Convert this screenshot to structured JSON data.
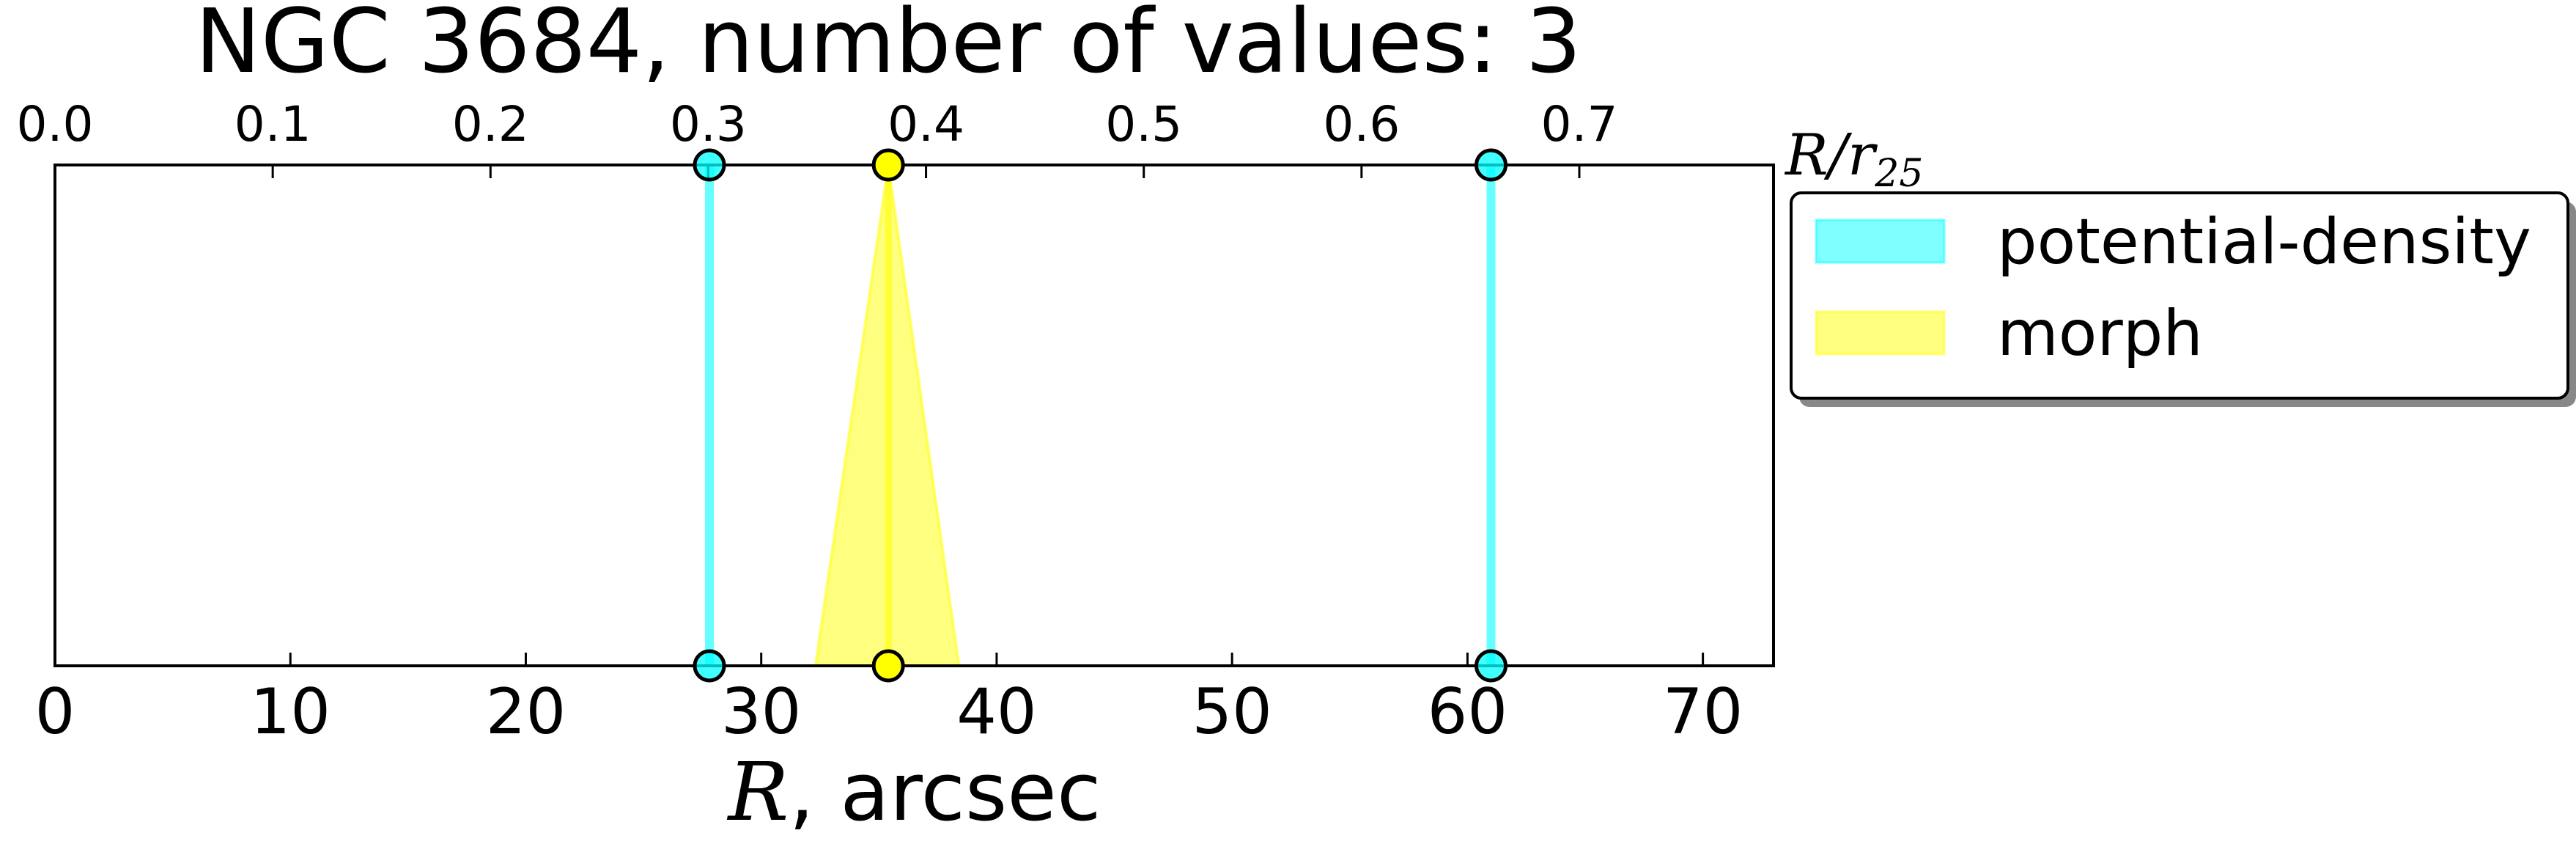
{
  "chart_data": {
    "type": "line",
    "title": "NGC 3684, number of values: 3",
    "xlabel_symbol": "R",
    "xlabel_unit": ", arcsec",
    "top_xlabel_main": "R/r",
    "top_xlabel_sub": "25",
    "xlim": [
      0,
      73
    ],
    "x_ticks": [
      0,
      10,
      20,
      30,
      40,
      50,
      60,
      70
    ],
    "x_tick_labels": [
      "0",
      "10",
      "20",
      "30",
      "40",
      "50",
      "60",
      "70"
    ],
    "top_ticks": [
      0.0,
      0.1,
      0.2,
      0.3,
      0.4,
      0.5,
      0.6,
      0.7
    ],
    "top_tick_labels": [
      "0.0",
      "0.1",
      "0.2",
      "0.3",
      "0.4",
      "0.5",
      "0.6",
      "0.7"
    ],
    "top_scale_R_at_r25_1": 92.5,
    "legend_position": "outside-right-top",
    "series": [
      {
        "name": "potential-density",
        "color": "#00ffff",
        "kind": "vertical-line",
        "values": [
          27.8,
          61.0
        ]
      },
      {
        "name": "morph",
        "color": "#ffff00",
        "kind": "triangle",
        "values": [
          35.4
        ],
        "base_range": [
          32.3,
          38.4
        ]
      }
    ]
  },
  "legend": {
    "items": [
      "potential-density",
      "morph"
    ]
  }
}
